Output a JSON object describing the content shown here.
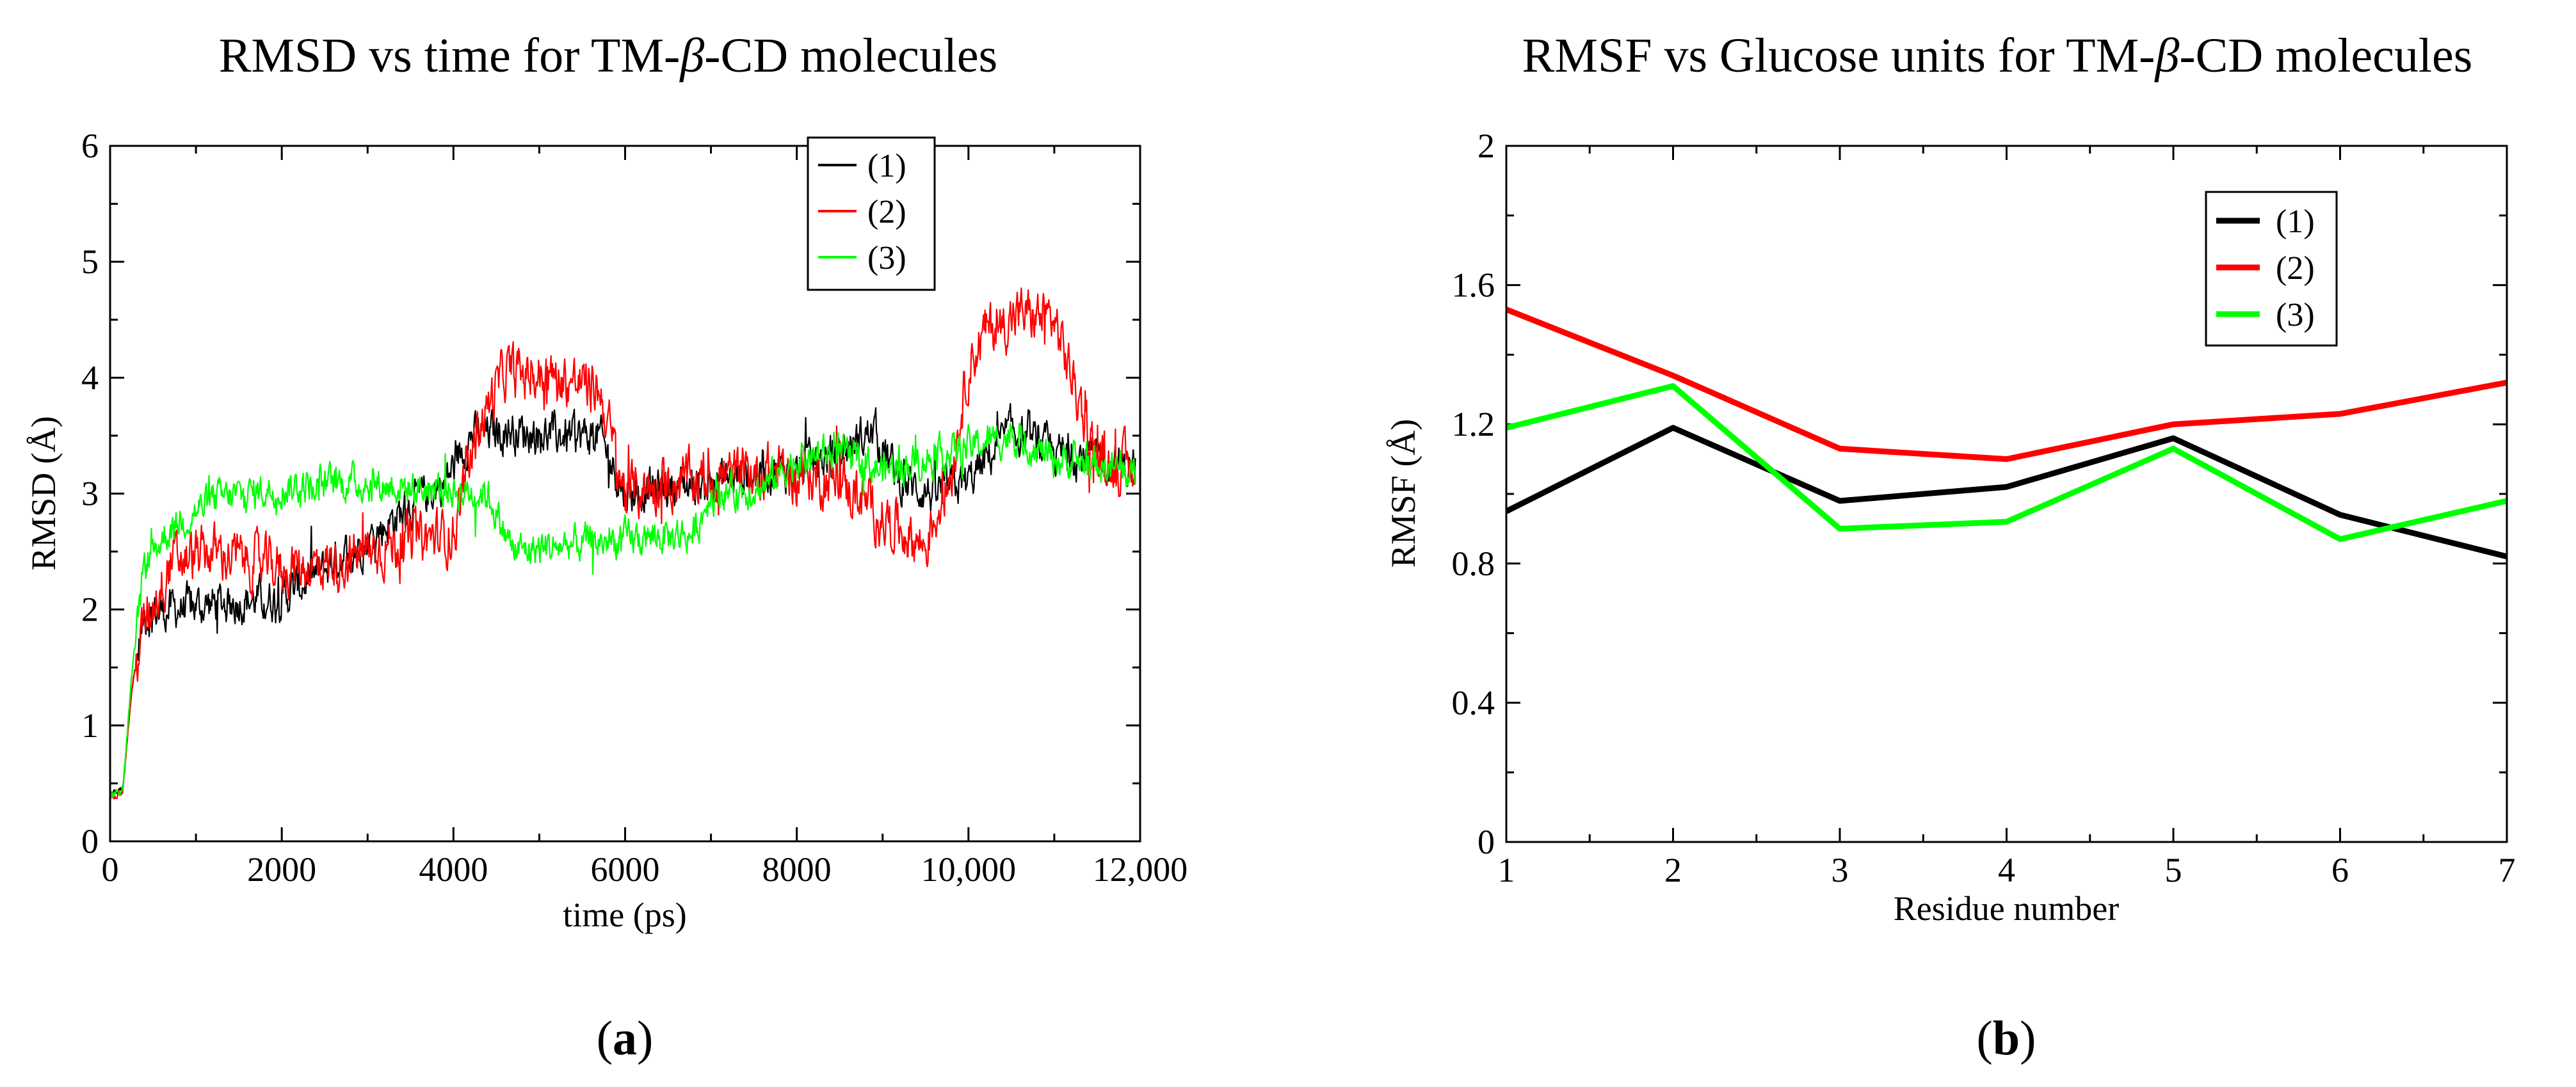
{
  "chart_data": [
    {
      "type": "line",
      "panel": "a",
      "title_pre": "RMSD vs time for TM-",
      "title_greek": "β",
      "title_post": "-CD molecules",
      "xlabel": "time (ps)",
      "ylabel": "RMSD (Å)",
      "xlim": [
        0,
        12000
      ],
      "ylim": [
        0,
        6
      ],
      "x_tick_values": [
        0,
        2000,
        4000,
        6000,
        8000,
        10000,
        12000
      ],
      "x_tick_labels": [
        "0",
        "2000",
        "4000",
        "6000",
        "8000",
        "10,000",
        "12,000"
      ],
      "y_tick_values": [
        0,
        1,
        2,
        3,
        4,
        5,
        6
      ],
      "y_tick_labels": [
        "0",
        "1",
        "2",
        "3",
        "4",
        "5",
        "6"
      ],
      "legend_position": "top-right",
      "series": [
        {
          "name": "(1)",
          "color": "#000000",
          "noise": 0.14,
          "x": [
            0,
            150,
            250,
            400,
            700,
            1200,
            2000,
            2400,
            3000,
            3500,
            3900,
            4200,
            4600,
            5200,
            5700,
            6000,
            6400,
            7000,
            7600,
            8000,
            8500,
            8900,
            9200,
            9600,
            10000,
            10500,
            11000,
            11500,
            11950
          ],
          "y": [
            0.4,
            0.45,
            1.3,
            1.95,
            2.0,
            2.05,
            2.1,
            2.3,
            2.6,
            2.9,
            3.1,
            3.5,
            3.55,
            3.5,
            3.5,
            3.0,
            3.05,
            3.1,
            3.2,
            3.2,
            3.35,
            3.55,
            3.1,
            3.0,
            3.1,
            3.55,
            3.35,
            3.3,
            3.2
          ]
        },
        {
          "name": "(2)",
          "color": "#ff0000",
          "noise": 0.18,
          "x": [
            0,
            150,
            250,
            400,
            700,
            1200,
            2000,
            2600,
            3200,
            4000,
            4300,
            4600,
            5200,
            5700,
            6000,
            6500,
            7200,
            7800,
            8500,
            9000,
            9500,
            9800,
            10000,
            10200,
            10600,
            11000,
            11500,
            11950
          ],
          "y": [
            0.4,
            0.45,
            1.3,
            1.9,
            2.4,
            2.5,
            2.35,
            2.4,
            2.55,
            2.65,
            3.6,
            4.05,
            4.0,
            3.9,
            3.0,
            3.1,
            3.15,
            3.2,
            3.1,
            2.8,
            2.55,
            3.2,
            4.1,
            4.4,
            4.55,
            4.5,
            3.3,
            3.2
          ]
        },
        {
          "name": "(3)",
          "color": "#00ff00",
          "noise": 0.12,
          "x": [
            0,
            150,
            250,
            400,
            700,
            1200,
            2000,
            2800,
            3500,
            4400,
            4700,
            5200,
            6000,
            6800,
            7000,
            7600,
            8000,
            8500,
            9000,
            9500,
            10000,
            10500,
            11000,
            11500,
            11950
          ],
          "y": [
            0.4,
            0.45,
            1.4,
            2.4,
            2.7,
            2.95,
            3.05,
            3.1,
            3.05,
            3.0,
            2.5,
            2.55,
            2.6,
            2.65,
            3.0,
            3.05,
            3.3,
            3.35,
            3.2,
            3.3,
            3.4,
            3.5,
            3.3,
            3.25,
            3.15
          ]
        }
      ]
    },
    {
      "type": "line",
      "panel": "b",
      "title_pre": "RMSF vs Glucose units for TM-",
      "title_greek": "β",
      "title_post": "-CD molecules",
      "xlabel": "Residue number",
      "ylabel": "RMSF (Å)",
      "xlim": [
        1,
        7
      ],
      "ylim": [
        0,
        2
      ],
      "x_tick_values": [
        1,
        2,
        3,
        4,
        5,
        6,
        7
      ],
      "x_tick_labels": [
        "1",
        "2",
        "3",
        "4",
        "5",
        "6",
        "7"
      ],
      "y_tick_values": [
        0,
        0.4,
        0.8,
        1.2,
        1.6,
        2
      ],
      "y_tick_labels": [
        "0",
        "0.4",
        "0.8",
        "1.2",
        "1.6",
        "2"
      ],
      "legend_position": "top-right",
      "series": [
        {
          "name": "(1)",
          "color": "#000000",
          "x": [
            1,
            2,
            3,
            4,
            5,
            6,
            7
          ],
          "y": [
            0.95,
            1.19,
            0.98,
            1.02,
            1.16,
            0.94,
            0.82
          ]
        },
        {
          "name": "(2)",
          "color": "#ff0000",
          "x": [
            1,
            2,
            3,
            4,
            5,
            6,
            7
          ],
          "y": [
            1.53,
            1.34,
            1.13,
            1.1,
            1.2,
            1.23,
            1.32
          ]
        },
        {
          "name": "(3)",
          "color": "#00ff00",
          "x": [
            1,
            2,
            3,
            4,
            5,
            6,
            7
          ],
          "y": [
            1.19,
            1.31,
            0.9,
            0.92,
            1.13,
            0.87,
            0.98
          ]
        }
      ]
    }
  ],
  "captions": {
    "a": "a",
    "b": "b"
  }
}
